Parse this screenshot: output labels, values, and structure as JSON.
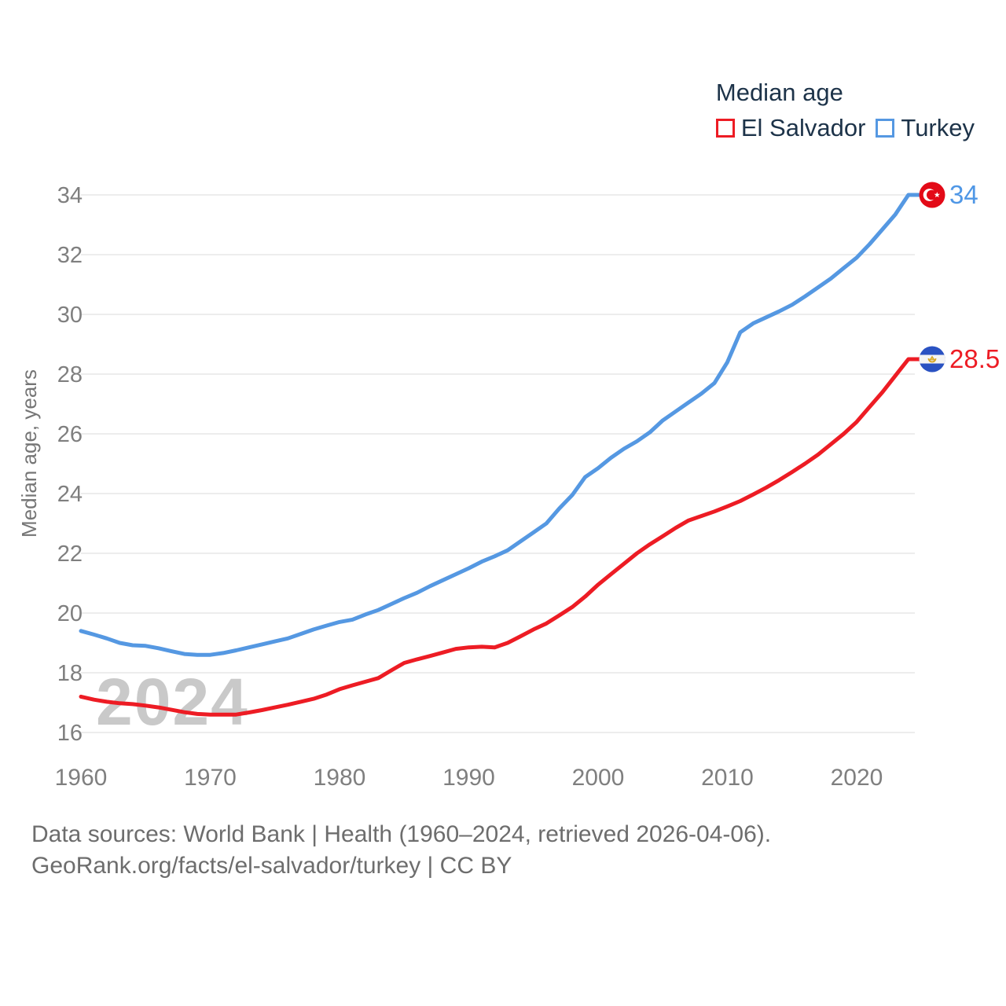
{
  "legend": {
    "title": "Median age",
    "items": [
      {
        "label": "El Salvador",
        "color": "#ed1c24"
      },
      {
        "label": "Turkey",
        "color": "#5598e2"
      }
    ]
  },
  "y_axis": {
    "title": "Median age, years",
    "ticks": [
      16,
      18,
      20,
      22,
      24,
      26,
      28,
      30,
      32,
      34
    ]
  },
  "x_axis": {
    "ticks": [
      1960,
      1970,
      1980,
      1990,
      2000,
      2010,
      2020
    ]
  },
  "watermark": "2024",
  "end_labels": [
    {
      "series": "Turkey",
      "value": "34",
      "color": "#4f97e6",
      "flag": "turkey-flag"
    },
    {
      "series": "El Salvador",
      "value": "28.5",
      "color": "#ed1c24",
      "flag": "el-salvador-flag"
    }
  ],
  "footer": {
    "line1": "Data sources: World Bank | Health (1960–2024, retrieved 2026-04-06).",
    "line2": "GeoRank.org/facts/el-salvador/turkey | CC BY"
  },
  "chart_data": {
    "type": "line",
    "title": "Median age",
    "ylabel": "Median age, years",
    "ylim": [
      15.4,
      34.6
    ],
    "grid": "horizontal",
    "legend_position": "top-right",
    "x": [
      1960,
      1961,
      1962,
      1963,
      1964,
      1965,
      1966,
      1967,
      1968,
      1969,
      1970,
      1971,
      1972,
      1973,
      1974,
      1975,
      1976,
      1977,
      1978,
      1979,
      1980,
      1981,
      1982,
      1983,
      1984,
      1985,
      1986,
      1987,
      1988,
      1989,
      1990,
      1991,
      1992,
      1993,
      1994,
      1995,
      1996,
      1997,
      1998,
      1999,
      2000,
      2001,
      2002,
      2003,
      2004,
      2005,
      2006,
      2007,
      2008,
      2009,
      2010,
      2011,
      2012,
      2013,
      2014,
      2015,
      2016,
      2017,
      2018,
      2019,
      2020,
      2021,
      2022,
      2023,
      2024
    ],
    "series": [
      {
        "name": "El Salvador",
        "color": "#ed1c24",
        "values": [
          17.2,
          17.1,
          17.03,
          16.98,
          16.95,
          16.9,
          16.84,
          16.76,
          16.68,
          16.62,
          16.6,
          16.6,
          16.6,
          16.67,
          16.75,
          16.84,
          16.93,
          17.03,
          17.13,
          17.27,
          17.45,
          17.58,
          17.7,
          17.82,
          18.08,
          18.33,
          18.45,
          18.56,
          18.68,
          18.8,
          18.85,
          18.87,
          18.85,
          19.0,
          19.22,
          19.45,
          19.65,
          19.92,
          20.2,
          20.55,
          20.95,
          21.3,
          21.65,
          22.0,
          22.3,
          22.57,
          22.85,
          23.1,
          23.25,
          23.4,
          23.57,
          23.75,
          23.97,
          24.2,
          24.45,
          24.72,
          25.0,
          25.3,
          25.65,
          26.0,
          26.4,
          26.9,
          27.4,
          27.95,
          28.5
        ]
      },
      {
        "name": "Turkey",
        "color": "#5598e2",
        "values": [
          19.4,
          19.28,
          19.15,
          19.0,
          18.92,
          18.9,
          18.82,
          18.72,
          18.63,
          18.6,
          18.6,
          18.66,
          18.75,
          18.85,
          18.95,
          19.05,
          19.15,
          19.3,
          19.45,
          19.58,
          19.7,
          19.78,
          19.95,
          20.1,
          20.3,
          20.5,
          20.68,
          20.9,
          21.1,
          21.3,
          21.5,
          21.72,
          21.9,
          22.1,
          22.4,
          22.7,
          23.0,
          23.5,
          23.95,
          24.55,
          24.85,
          25.2,
          25.5,
          25.75,
          26.05,
          26.45,
          26.75,
          27.05,
          27.35,
          27.7,
          28.4,
          29.4,
          29.7,
          29.9,
          30.1,
          30.32,
          30.6,
          30.9,
          31.2,
          31.55,
          31.9,
          32.35,
          32.85,
          33.35,
          34.0
        ]
      }
    ]
  }
}
